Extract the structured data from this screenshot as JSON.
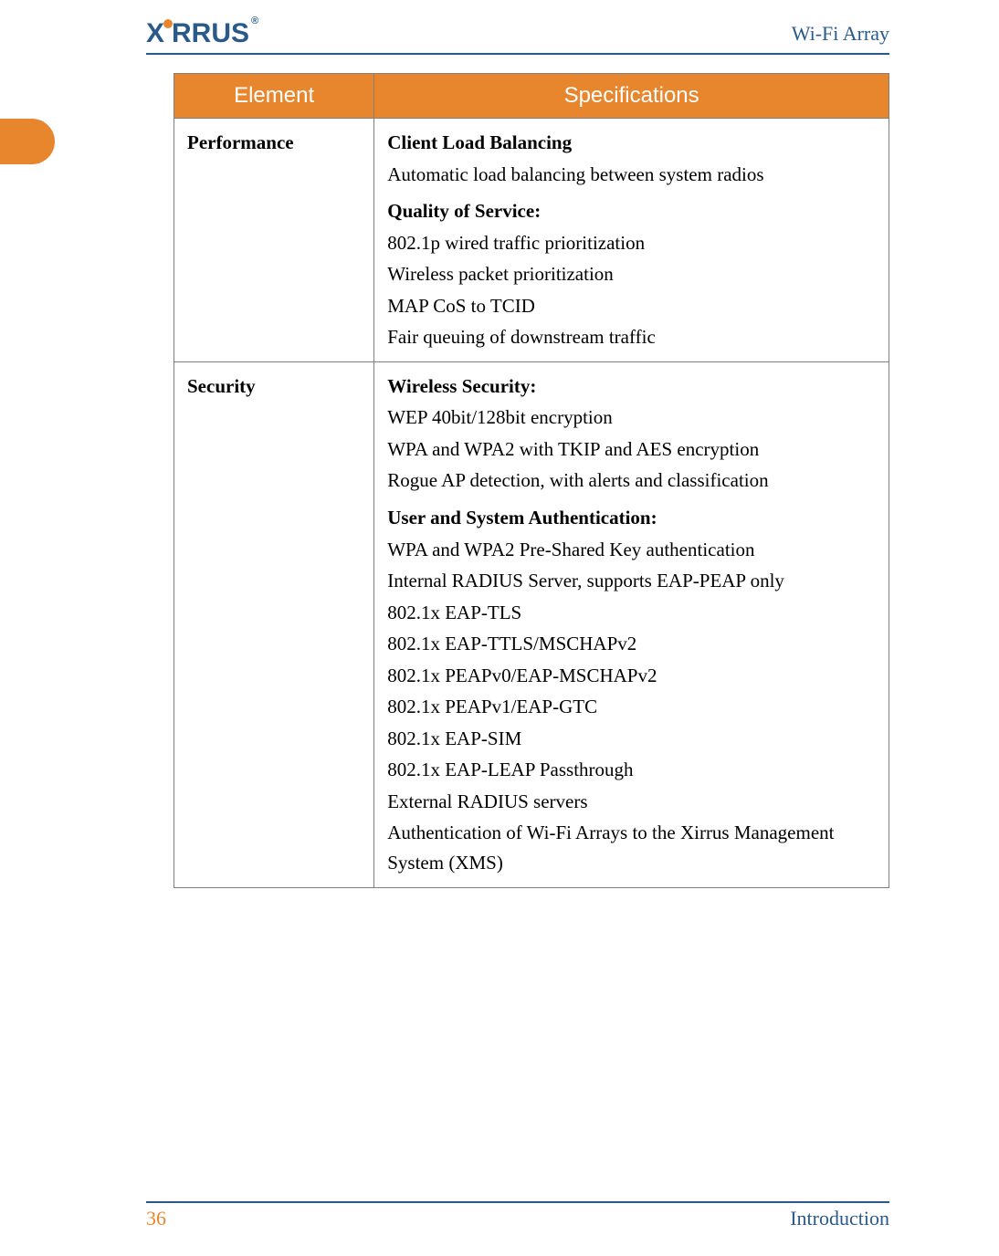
{
  "header": {
    "brand": "XIRRUS",
    "title_right": "Wi-Fi Array"
  },
  "colors": {
    "accent_orange": "#e8862e",
    "accent_blue": "#2a5a8a",
    "border_gray": "#808080",
    "header_text": "#ffffff",
    "body_text": "#000000",
    "background": "#ffffff"
  },
  "table": {
    "columns": [
      "Element",
      "Specifications"
    ],
    "rows": [
      {
        "element": "Performance",
        "blocks": [
          {
            "heading": "Client Load Balancing",
            "lines": [
              "Automatic load balancing between system radios"
            ]
          },
          {
            "heading": "Quality of Service:",
            "lines": [
              "802.1p wired traffic prioritization",
              "Wireless packet prioritization",
              "MAP CoS to TCID",
              "Fair queuing of downstream traffic"
            ]
          }
        ]
      },
      {
        "element": "Security",
        "blocks": [
          {
            "heading": "Wireless Security:",
            "lines": [
              "WEP 40bit/128bit encryption",
              "WPA and WPA2 with TKIP and AES encryption",
              "Rogue AP detection, with alerts and classification"
            ]
          },
          {
            "heading": "User and System Authentication:",
            "lines": [
              "WPA and WPA2 Pre-Shared Key authentication",
              "Internal RADIUS Server, supports EAP-PEAP only",
              "802.1x EAP-TLS",
              "802.1x EAP-TTLS/MSCHAPv2",
              "802.1x PEAPv0/EAP-MSCHAPv2",
              "802.1x PEAPv1/EAP-GTC",
              "802.1x EAP-SIM",
              "802.1x EAP-LEAP Passthrough",
              "External RADIUS servers",
              "Authentication of Wi-Fi Arrays to the Xirrus Management System (XMS)"
            ]
          }
        ]
      }
    ]
  },
  "footer": {
    "page_number": "36",
    "section": "Introduction"
  }
}
